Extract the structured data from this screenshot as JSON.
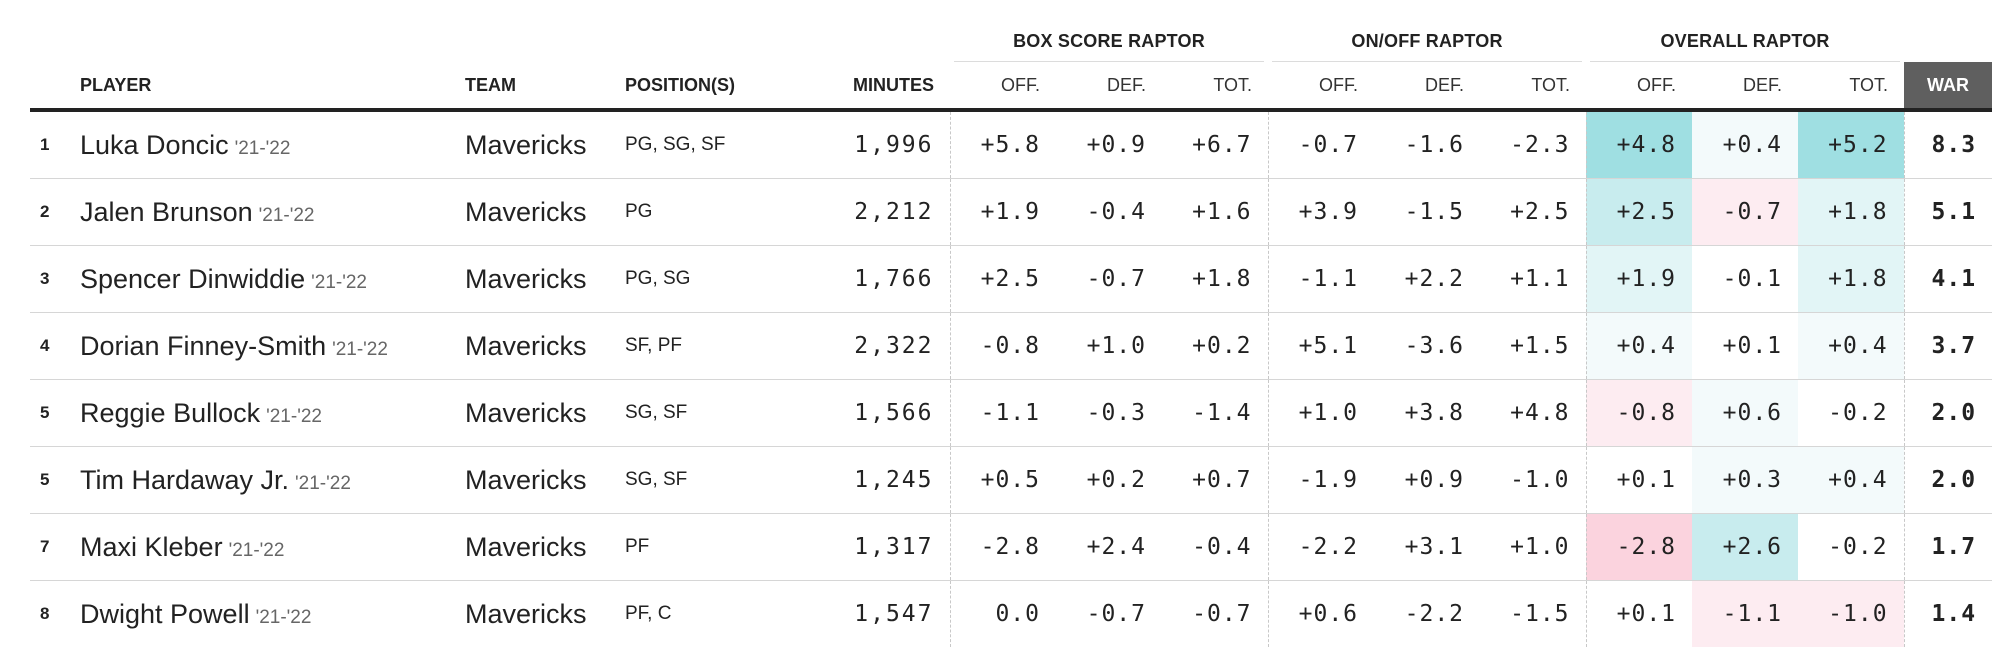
{
  "groups": {
    "box_score": "BOX SCORE RAPTOR",
    "on_off": "ON/OFF RAPTOR",
    "overall": "OVERALL RAPTOR"
  },
  "headers": {
    "player": "PLAYER",
    "team": "TEAM",
    "positions": "POSITION(S)",
    "minutes": "MINUTES",
    "off": "OFF.",
    "def": "DEF.",
    "tot": "TOT.",
    "war": "WAR"
  },
  "colors": {
    "positive_strong": "#9fdfe2",
    "positive_mid": "#c8ecee",
    "positive_light": "#e2f5f6",
    "positive_faint": "#f3fafb",
    "negative_strong": "#fbd3de",
    "negative_light": "#fdecf1",
    "war_header_bg": "#5f5f5f"
  },
  "rows": [
    {
      "rank": "1",
      "name": "Luka Doncic",
      "season": "'21-'22",
      "team": "Mavericks",
      "positions": "PG, SG, SF",
      "minutes": "1,996",
      "box_off": "+5.8",
      "box_def": "+0.9",
      "box_tot": "+6.7",
      "oo_off": "-0.7",
      "oo_def": "-1.6",
      "oo_tot": "-2.3",
      "ov_off": "+4.8",
      "ov_def": "+0.4",
      "ov_tot": "+5.2",
      "war": "8.3",
      "shade": {
        "ov_off": "positive_strong",
        "ov_def": "positive_faint",
        "ov_tot": "positive_strong"
      }
    },
    {
      "rank": "2",
      "name": "Jalen Brunson",
      "season": "'21-'22",
      "team": "Mavericks",
      "positions": "PG",
      "minutes": "2,212",
      "box_off": "+1.9",
      "box_def": "-0.4",
      "box_tot": "+1.6",
      "oo_off": "+3.9",
      "oo_def": "-1.5",
      "oo_tot": "+2.5",
      "ov_off": "+2.5",
      "ov_def": "-0.7",
      "ov_tot": "+1.8",
      "war": "5.1",
      "shade": {
        "ov_off": "positive_mid",
        "ov_def": "negative_light",
        "ov_tot": "positive_light"
      }
    },
    {
      "rank": "3",
      "name": "Spencer Dinwiddie",
      "season": "'21-'22",
      "team": "Mavericks",
      "positions": "PG, SG",
      "minutes": "1,766",
      "box_off": "+2.5",
      "box_def": "-0.7",
      "box_tot": "+1.8",
      "oo_off": "-1.1",
      "oo_def": "+2.2",
      "oo_tot": "+1.1",
      "ov_off": "+1.9",
      "ov_def": "-0.1",
      "ov_tot": "+1.8",
      "war": "4.1",
      "shade": {
        "ov_off": "positive_light",
        "ov_def": "",
        "ov_tot": "positive_light"
      }
    },
    {
      "rank": "4",
      "name": "Dorian Finney-Smith",
      "season": "'21-'22",
      "team": "Mavericks",
      "positions": "SF, PF",
      "minutes": "2,322",
      "box_off": "-0.8",
      "box_def": "+1.0",
      "box_tot": "+0.2",
      "oo_off": "+5.1",
      "oo_def": "-3.6",
      "oo_tot": "+1.5",
      "ov_off": "+0.4",
      "ov_def": "+0.1",
      "ov_tot": "+0.4",
      "war": "3.7",
      "shade": {
        "ov_off": "positive_faint",
        "ov_def": "",
        "ov_tot": "positive_faint"
      }
    },
    {
      "rank": "5",
      "name": "Reggie Bullock",
      "season": "'21-'22",
      "team": "Mavericks",
      "positions": "SG, SF",
      "minutes": "1,566",
      "box_off": "-1.1",
      "box_def": "-0.3",
      "box_tot": "-1.4",
      "oo_off": "+1.0",
      "oo_def": "+3.8",
      "oo_tot": "+4.8",
      "ov_off": "-0.8",
      "ov_def": "+0.6",
      "ov_tot": "-0.2",
      "war": "2.0",
      "shade": {
        "ov_off": "negative_light",
        "ov_def": "positive_faint",
        "ov_tot": ""
      }
    },
    {
      "rank": "5",
      "name": "Tim Hardaway Jr.",
      "season": "'21-'22",
      "team": "Mavericks",
      "positions": "SG, SF",
      "minutes": "1,245",
      "box_off": "+0.5",
      "box_def": "+0.2",
      "box_tot": "+0.7",
      "oo_off": "-1.9",
      "oo_def": "+0.9",
      "oo_tot": "-1.0",
      "ov_off": "+0.1",
      "ov_def": "+0.3",
      "ov_tot": "+0.4",
      "war": "2.0",
      "shade": {
        "ov_off": "",
        "ov_def": "positive_faint",
        "ov_tot": "positive_faint"
      }
    },
    {
      "rank": "7",
      "name": "Maxi Kleber",
      "season": "'21-'22",
      "team": "Mavericks",
      "positions": "PF",
      "minutes": "1,317",
      "box_off": "-2.8",
      "box_def": "+2.4",
      "box_tot": "-0.4",
      "oo_off": "-2.2",
      "oo_def": "+3.1",
      "oo_tot": "+1.0",
      "ov_off": "-2.8",
      "ov_def": "+2.6",
      "ov_tot": "-0.2",
      "war": "1.7",
      "shade": {
        "ov_off": "negative_strong",
        "ov_def": "positive_mid",
        "ov_tot": ""
      }
    },
    {
      "rank": "8",
      "name": "Dwight Powell",
      "season": "'21-'22",
      "team": "Mavericks",
      "positions": "PF, C",
      "minutes": "1,547",
      "box_off": "0.0",
      "box_def": "-0.7",
      "box_tot": "-0.7",
      "oo_off": "+0.6",
      "oo_def": "-2.2",
      "oo_tot": "-1.5",
      "ov_off": "+0.1",
      "ov_def": "-1.1",
      "ov_tot": "-1.0",
      "war": "1.4",
      "shade": {
        "ov_off": "",
        "ov_def": "negative_light",
        "ov_tot": "negative_light"
      }
    }
  ]
}
